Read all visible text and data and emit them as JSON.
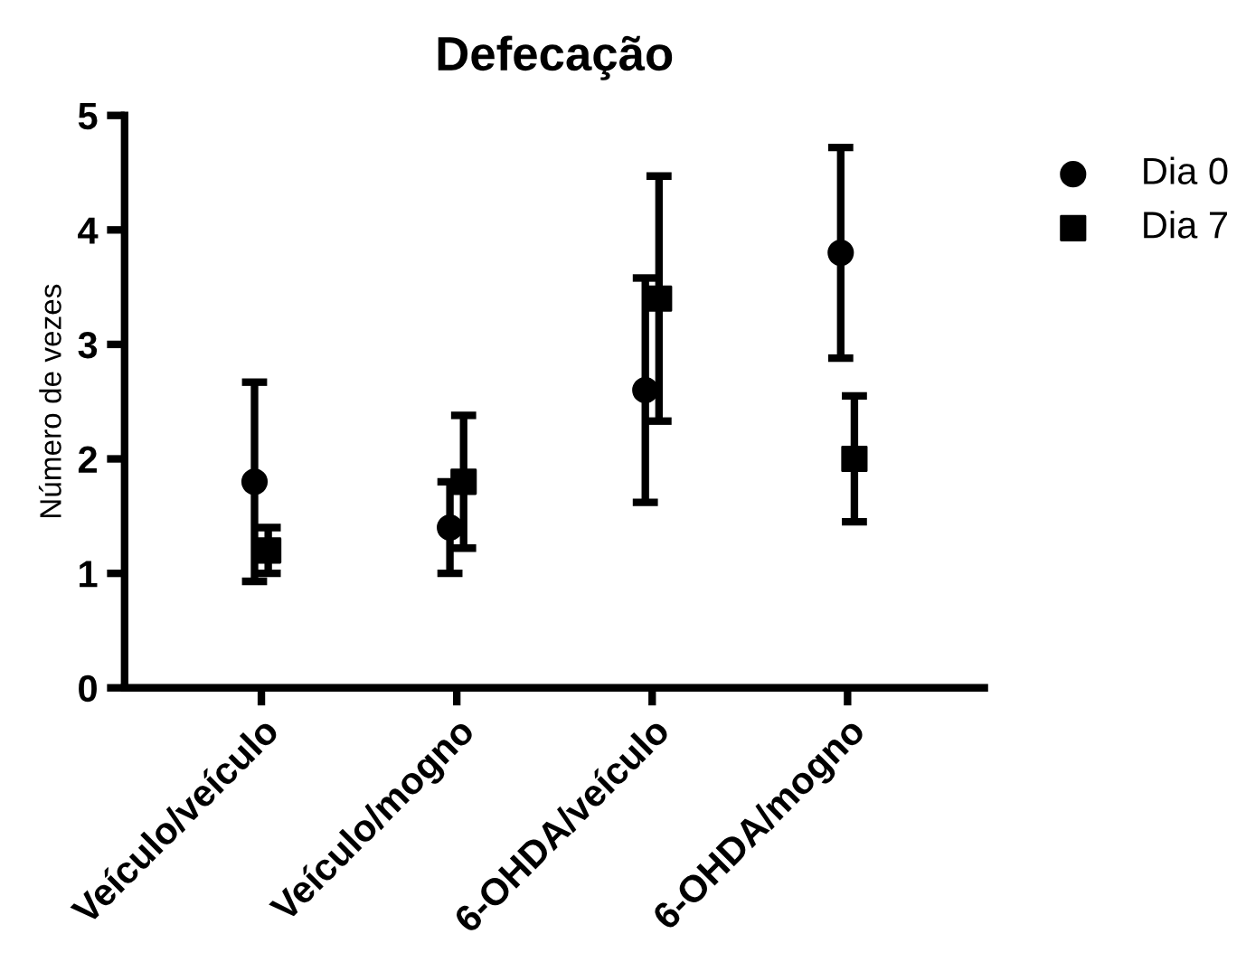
{
  "chart_data": {
    "type": "scatter",
    "title": "Defecação",
    "ylabel": "Número de vezes",
    "categories": [
      "Veículo/veículo",
      "Veículo/mogno",
      "6-OHDA/veículo",
      "6-OHDA/mogno"
    ],
    "series": [
      {
        "name": "Dia 0",
        "color": "#000000",
        "marker": "circle",
        "values": [
          1.8,
          1.4,
          2.6,
          3.8
        ],
        "errors": [
          0.87,
          0.4,
          0.98,
          0.92
        ]
      },
      {
        "name": "Dia 7",
        "color": "#000000",
        "marker": "square",
        "values": [
          1.2,
          1.8,
          3.4,
          2.0
        ],
        "errors": [
          0.2,
          0.58,
          1.07,
          0.55
        ]
      }
    ],
    "ylim": [
      0,
      5
    ],
    "yticks": [
      0,
      1,
      2,
      3,
      4,
      5
    ],
    "grid": false,
    "legend": "right"
  }
}
